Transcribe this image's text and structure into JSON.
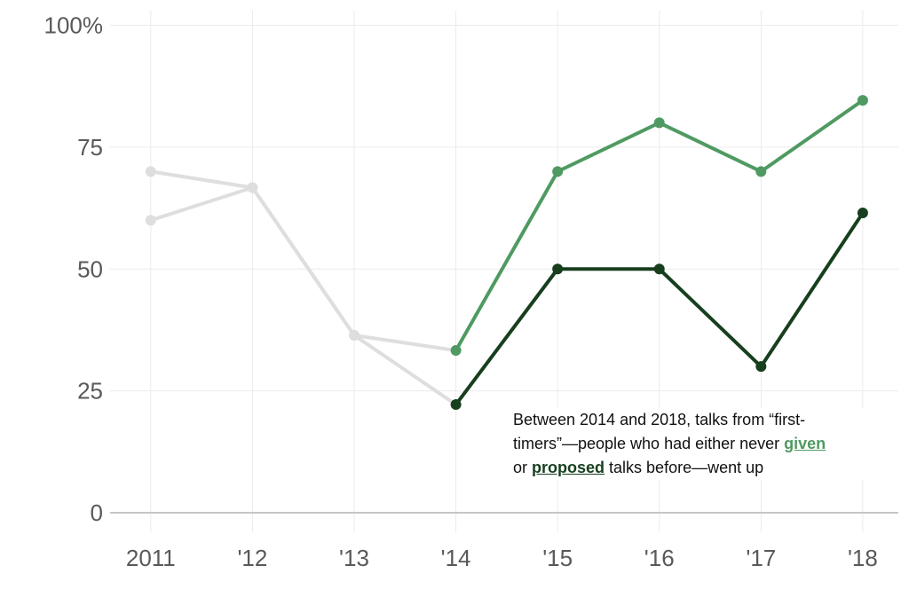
{
  "colors": {
    "given": "#4f9a62",
    "proposed": "#173f1e",
    "pre_period": "#dedede",
    "grid": "#ebebeb",
    "baseline": "#c6c6c6"
  },
  "chart_data": {
    "type": "line",
    "x": [
      2011,
      2012,
      2013,
      2014,
      2015,
      2016,
      2017,
      2018
    ],
    "x_tick_labels": [
      "2011",
      "'12",
      "'13",
      "'14",
      "'15",
      "'16",
      "'17",
      "'18"
    ],
    "y_tick_labels": [
      "0",
      "25",
      "50",
      "75",
      "100%"
    ],
    "y_ticks": [
      0,
      25,
      50,
      75,
      100
    ],
    "ylim": [
      -4,
      103
    ],
    "xlim": [
      2010.6,
      2018.35
    ],
    "series": [
      {
        "name": "given",
        "values": [
          60,
          66.7,
          36.4,
          33.3,
          70,
          80,
          70,
          84.6
        ]
      },
      {
        "name": "proposed",
        "values": [
          70,
          66.7,
          36.4,
          22.2,
          50,
          50,
          30,
          61.5
        ]
      }
    ],
    "highlight_from_x": 2014,
    "grid": true,
    "annotation": {
      "line1": "Between 2014 and 2018, talks from “first-",
      "line2a": "timers”—people who had either never ",
      "given_word": "given",
      "line3a": "or ",
      "proposed_word": "proposed",
      "line3b": " talks before—went up"
    }
  }
}
